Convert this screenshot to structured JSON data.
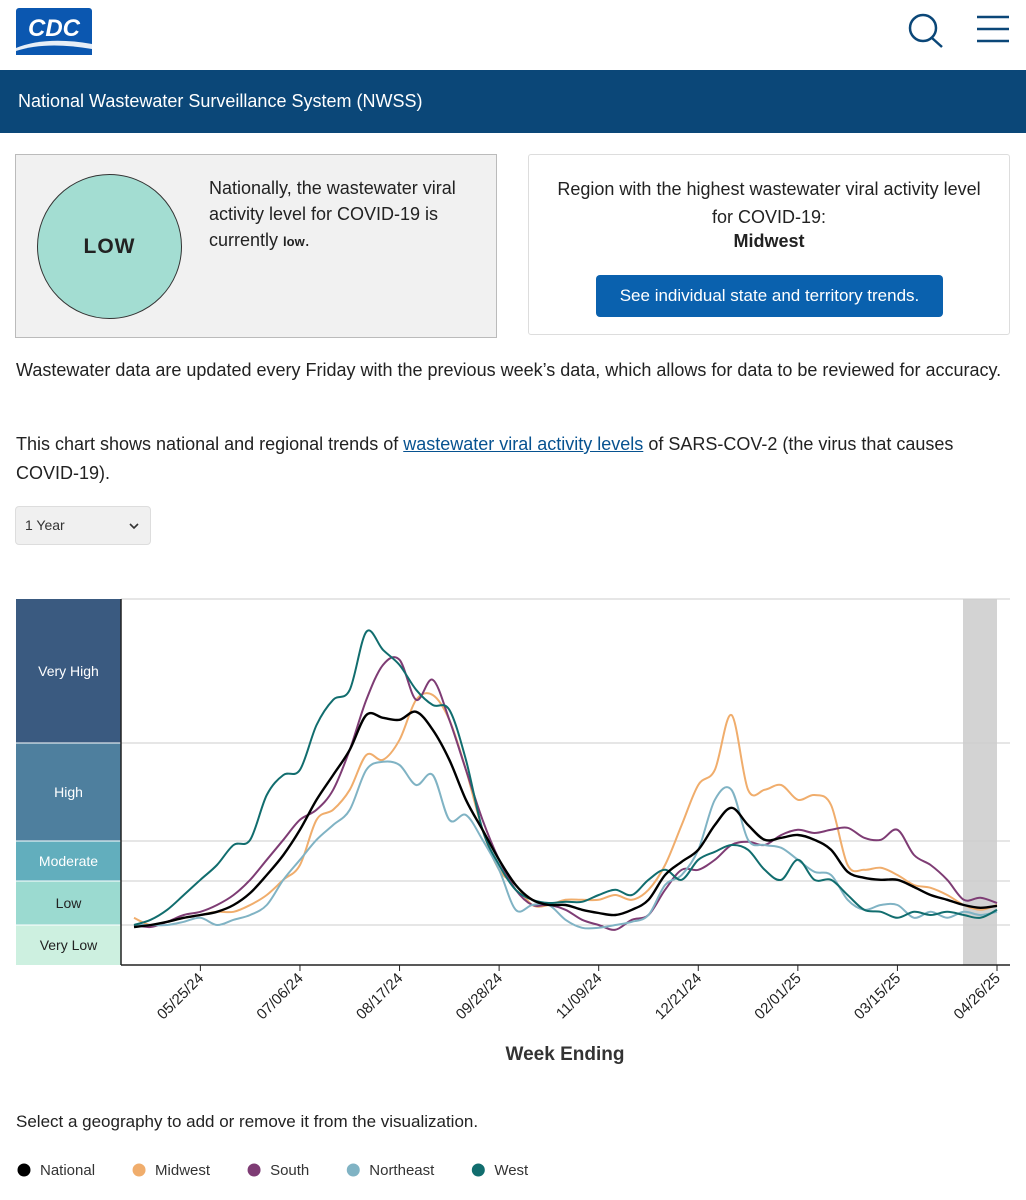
{
  "header": {
    "logo": "CDC",
    "banner": "National Wastewater Surveillance System (NWSS)"
  },
  "summary": {
    "badge": "LOW",
    "text": "Nationally, the wastewater viral activity level for COVID-19 is currently",
    "level": "low",
    "end": "."
  },
  "region": {
    "text": "Region with the highest wastewater viral activity level for COVID-19:",
    "name": "Midwest",
    "button": "See individual state and territory trends."
  },
  "paragraph1": "Wastewater data are updated every Friday with the previous week’s data, which allows for data to be reviewed for accuracy.",
  "paragraph2": {
    "before": "This chart shows national and regional trends of ",
    "link": "wastewater viral activity levels",
    "after": " of SARS-COV-2 (the virus that causes COVID-19)."
  },
  "select": "1 Year",
  "chart_data": {
    "type": "line",
    "x_label": "Week Ending",
    "categories": [
      null,
      null,
      null,
      null,
      "05/25/24",
      null,
      null,
      null,
      null,
      null,
      "07/06/24",
      null,
      null,
      null,
      null,
      null,
      "08/17/24",
      null,
      null,
      null,
      null,
      null,
      "09/28/24",
      null,
      null,
      null,
      null,
      null,
      "11/09/24",
      null,
      null,
      null,
      null,
      null,
      "12/21/24",
      null,
      null,
      null,
      null,
      null,
      "02/01/25",
      null,
      null,
      null,
      null,
      null,
      "03/15/25",
      null,
      null,
      null,
      null,
      null,
      "04/26/25"
    ],
    "ylim": [
      0,
      9.15
    ],
    "level_thresholds": [
      1,
      2.1,
      3.1,
      5.55
    ],
    "levels": [
      "Very Low",
      "Low",
      "Moderate",
      "High",
      "Very High"
    ],
    "level_colors": [
      "#cdf0e0",
      "#9bdad0",
      "#62aebd",
      "#4e7f9e",
      "#3a5a80"
    ],
    "series": [
      {
        "name": "National",
        "color": "#000000",
        "values": [
          0.95,
          1.0,
          1.08,
          1.18,
          1.25,
          1.33,
          1.5,
          1.8,
          2.25,
          2.75,
          3.38,
          4.13,
          4.75,
          5.38,
          6.25,
          6.18,
          6.13,
          6.33,
          5.88,
          5.13,
          4.13,
          3.38,
          2.63,
          2.0,
          1.63,
          1.5,
          1.5,
          1.38,
          1.3,
          1.25,
          1.38,
          1.63,
          2.25,
          2.58,
          2.88,
          3.5,
          3.93,
          3.5,
          3.13,
          3.18,
          3.25,
          3.13,
          2.88,
          2.33,
          2.18,
          2.13,
          2.13,
          1.95,
          1.75,
          1.63,
          1.5,
          1.43,
          1.48
        ]
      },
      {
        "name": "Midwest",
        "color": "#f0ad6c",
        "values": [
          1.18,
          1.0,
          1.08,
          1.18,
          1.25,
          1.33,
          1.33,
          1.5,
          1.75,
          2.13,
          2.5,
          3.63,
          3.88,
          4.38,
          5.25,
          5.13,
          5.63,
          6.63,
          6.75,
          6.13,
          4.88,
          3.38,
          2.38,
          2.0,
          1.5,
          1.5,
          1.63,
          1.63,
          1.63,
          1.75,
          1.63,
          1.88,
          2.5,
          3.5,
          4.5,
          4.88,
          6.25,
          4.38,
          4.38,
          4.5,
          4.13,
          4.25,
          4.0,
          2.5,
          2.38,
          2.43,
          2.25,
          2.0,
          1.93,
          1.75,
          1.5,
          1.38,
          1.5
        ]
      },
      {
        "name": "South",
        "color": "#7e3c74",
        "values": [
          1.0,
          0.95,
          1.08,
          1.25,
          1.33,
          1.5,
          1.75,
          2.13,
          2.63,
          3.13,
          3.63,
          3.88,
          4.38,
          5.38,
          6.63,
          7.5,
          7.63,
          6.63,
          7.13,
          6.13,
          4.88,
          3.63,
          2.63,
          1.88,
          1.5,
          1.5,
          1.38,
          1.13,
          1.0,
          0.88,
          1.13,
          1.25,
          1.88,
          2.38,
          2.38,
          2.63,
          3.0,
          3.08,
          3.0,
          3.25,
          3.38,
          3.3,
          3.38,
          3.43,
          3.18,
          3.13,
          3.38,
          2.75,
          2.5,
          2.13,
          1.63,
          1.68,
          1.55
        ]
      },
      {
        "name": "Northeast",
        "color": "#80b3c4",
        "values": [
          1.0,
          1.0,
          1.0,
          1.08,
          1.18,
          1.0,
          1.13,
          1.25,
          1.5,
          2.13,
          2.63,
          3.13,
          3.5,
          3.88,
          4.88,
          5.08,
          5.0,
          4.5,
          4.75,
          3.63,
          3.75,
          3.13,
          2.38,
          1.38,
          1.5,
          1.5,
          1.13,
          0.93,
          0.93,
          1.0,
          1.08,
          1.25,
          2.0,
          2.25,
          2.88,
          4.13,
          4.38,
          3.13,
          3.0,
          2.93,
          2.63,
          2.33,
          2.25,
          1.63,
          1.38,
          1.5,
          1.5,
          1.18,
          1.33,
          1.18,
          1.33,
          1.25,
          1.33
        ]
      },
      {
        "name": "West",
        "color": "#116d6e",
        "values": [
          1.0,
          1.13,
          1.38,
          1.75,
          2.13,
          2.5,
          3.0,
          3.13,
          4.25,
          4.75,
          4.88,
          6.0,
          6.63,
          6.88,
          8.33,
          7.88,
          7.5,
          6.88,
          6.5,
          6.38,
          5.13,
          3.38,
          2.5,
          1.88,
          1.63,
          1.55,
          1.58,
          1.58,
          1.75,
          1.88,
          1.75,
          2.13,
          2.38,
          2.13,
          2.63,
          2.83,
          3.0,
          2.88,
          2.38,
          2.13,
          2.63,
          2.13,
          2.13,
          1.75,
          1.38,
          1.33,
          1.18,
          1.33,
          1.25,
          1.33,
          1.25,
          1.18,
          1.38
        ]
      }
    ]
  },
  "legend_prompt": "Select a geography to add or remove it from the visualization."
}
